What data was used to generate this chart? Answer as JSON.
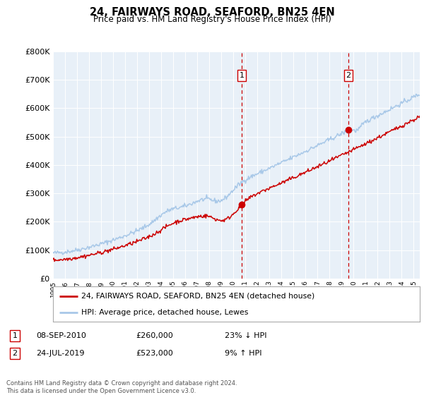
{
  "title": "24, FAIRWAYS ROAD, SEAFORD, BN25 4EN",
  "subtitle": "Price paid vs. HM Land Registry's House Price Index (HPI)",
  "ylim": [
    0,
    800000
  ],
  "xlim_start": 1995.0,
  "xlim_end": 2025.5,
  "hpi_color": "#a8c8e8",
  "price_color": "#cc0000",
  "marker_color": "#cc0000",
  "vline_color": "#cc0000",
  "plot_bg": "#e8f0f8",
  "legend_label_red": "24, FAIRWAYS ROAD, SEAFORD, BN25 4EN (detached house)",
  "legend_label_blue": "HPI: Average price, detached house, Lewes",
  "transaction1_date": "08-SEP-2010",
  "transaction1_price": "£260,000",
  "transaction1_hpi": "23% ↓ HPI",
  "transaction2_date": "24-JUL-2019",
  "transaction2_price": "£523,000",
  "transaction2_hpi": "9% ↑ HPI",
  "footer": "Contains HM Land Registry data © Crown copyright and database right 2024.\nThis data is licensed under the Open Government Licence v3.0.",
  "transaction1_x": 2010.69,
  "transaction1_y": 260000,
  "transaction2_x": 2019.56,
  "transaction2_y": 523000,
  "seed": 42
}
